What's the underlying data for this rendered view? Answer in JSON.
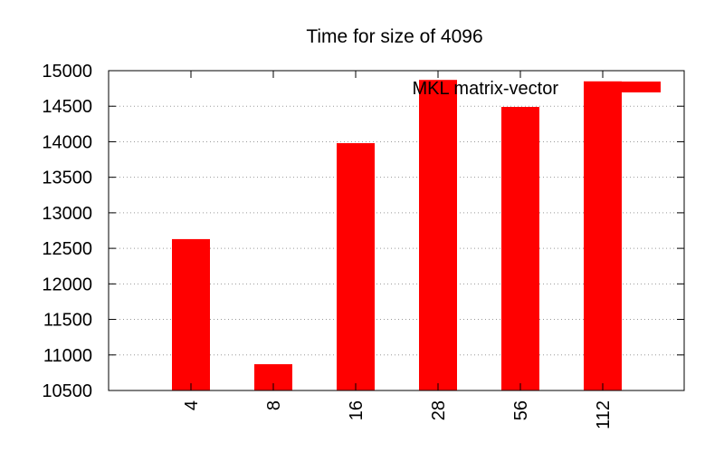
{
  "chart_data": {
    "type": "bar",
    "title": "Time for size of 4096",
    "xlabel": "",
    "ylabel": "",
    "categories": [
      "4",
      "8",
      "16",
      "28",
      "56",
      "112"
    ],
    "series": [
      {
        "name": "MKL matrix-vector",
        "values": [
          12630,
          10870,
          13980,
          14870,
          14490,
          14850
        ]
      }
    ],
    "ylim": [
      10500,
      15000
    ],
    "yticks": [
      10500,
      11000,
      11500,
      12000,
      12500,
      13000,
      13500,
      14000,
      14500,
      15000
    ],
    "grid": "horizontal-dotted",
    "legend_position": "top-right",
    "xtick_rotation": "vertical",
    "colors": {
      "bar": "#ff0000",
      "grid": "#9a9a9a",
      "axis": "#000000"
    }
  }
}
